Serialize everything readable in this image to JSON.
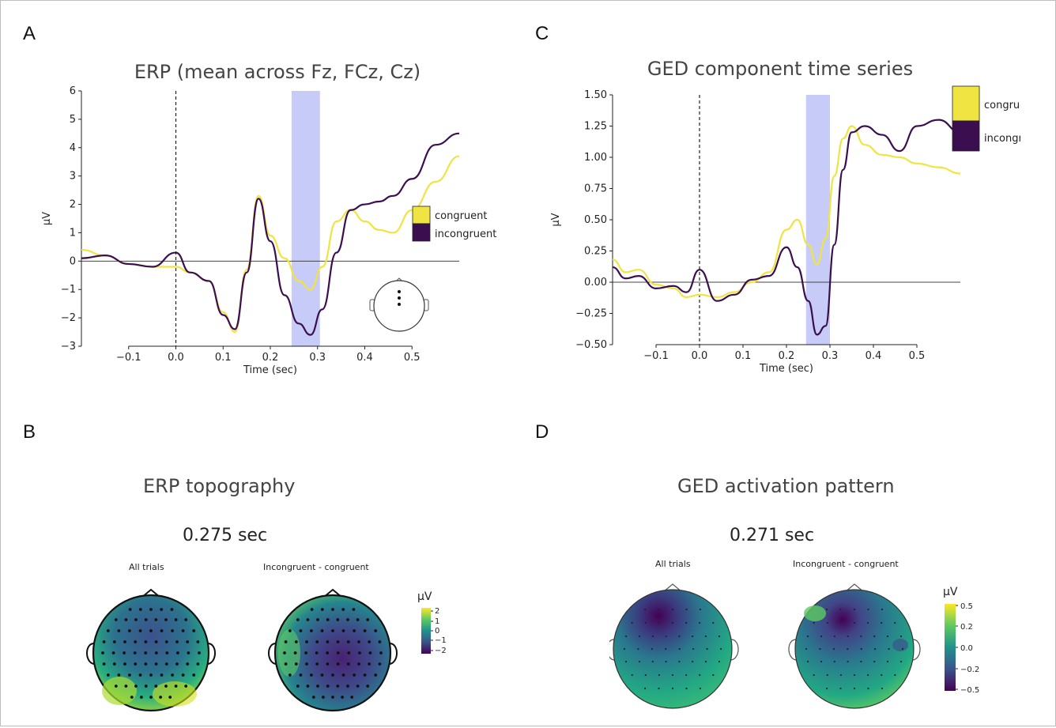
{
  "panels": {
    "a": {
      "letter": "A",
      "title": "ERP (mean across Fz, FCz, Cz)",
      "ylabel": "μV",
      "xlabel": "Time (sec)"
    },
    "b": {
      "letter": "B",
      "title": "ERP topography",
      "time": "0.275 sec",
      "map_left_label": "All trials",
      "map_right_label": "Incongruent - congruent",
      "colorbar_unit": "μV",
      "colorbar_ticks": [
        "2",
        "1",
        "0",
        "−1",
        "−2"
      ]
    },
    "c": {
      "letter": "C",
      "title": "GED component time series",
      "ylabel": "μV",
      "xlabel": "Time (sec)"
    },
    "d": {
      "letter": "D",
      "title": "GED activation pattern",
      "time": "0.271 sec",
      "map_left_label": "All trials",
      "map_right_label": "Incongruent - congruent",
      "colorbar_unit": "μV",
      "colorbar_ticks": [
        "0.5",
        "0.2",
        "0.0",
        "−0.2",
        "−0.5"
      ]
    }
  },
  "colors": {
    "congruent": "#f0e442",
    "incongruent": "#3b0f4f",
    "highlight": "#c7cbf7",
    "viridis": [
      "#440154",
      "#3b528b",
      "#21918c",
      "#5ec962",
      "#fde725"
    ]
  },
  "chart_data": [
    {
      "type": "line",
      "title": "ERP (mean across Fz, FCz, Cz)",
      "xlabel": "Time (sec)",
      "ylabel": "μV",
      "xlim": [
        -0.2,
        0.6
      ],
      "ylim": [
        -3,
        6
      ],
      "xticks": [
        "−0.1",
        "0.0",
        "0.1",
        "0.2",
        "0.3",
        "0.4",
        "0.5"
      ],
      "xtick_values": [
        -0.1,
        0.0,
        0.1,
        0.2,
        0.3,
        0.4,
        0.5
      ],
      "yticks": [
        "−3",
        "−2",
        "−1",
        "0",
        "1",
        "2",
        "3",
        "4",
        "5",
        "6"
      ],
      "ytick_values": [
        -3,
        -2,
        -1,
        0,
        1,
        2,
        3,
        4,
        5,
        6
      ],
      "highlight_window": [
        0.245,
        0.305
      ],
      "stimulus_line_x": 0.0,
      "legend": [
        "congruent",
        "incongruent"
      ],
      "series": [
        {
          "name": "congruent",
          "x": [
            -0.2,
            -0.15,
            -0.1,
            -0.05,
            0.0,
            0.03,
            0.07,
            0.1,
            0.125,
            0.15,
            0.175,
            0.2,
            0.23,
            0.26,
            0.285,
            0.31,
            0.34,
            0.37,
            0.4,
            0.43,
            0.46,
            0.5,
            0.55,
            0.6
          ],
          "y": [
            0.4,
            0.2,
            -0.1,
            -0.2,
            -0.2,
            -0.4,
            -0.7,
            -1.8,
            -2.5,
            -0.3,
            2.3,
            0.9,
            0.1,
            -0.7,
            -1.0,
            -0.2,
            1.4,
            1.8,
            1.4,
            1.1,
            1.0,
            1.8,
            2.8,
            3.7
          ]
        },
        {
          "name": "incongruent",
          "x": [
            -0.2,
            -0.15,
            -0.1,
            -0.05,
            0.0,
            0.03,
            0.07,
            0.1,
            0.125,
            0.15,
            0.175,
            0.2,
            0.23,
            0.26,
            0.285,
            0.31,
            0.34,
            0.37,
            0.4,
            0.43,
            0.46,
            0.5,
            0.55,
            0.6
          ],
          "y": [
            0.1,
            0.2,
            -0.1,
            -0.2,
            0.3,
            -0.4,
            -0.7,
            -1.9,
            -2.4,
            -0.4,
            2.2,
            0.7,
            -1.2,
            -2.2,
            -2.6,
            -1.7,
            0.3,
            1.8,
            2.0,
            2.1,
            2.3,
            2.9,
            4.1,
            4.5
          ]
        }
      ]
    },
    {
      "type": "line",
      "title": "GED component time series",
      "xlabel": "Time (sec)",
      "ylabel": "μV",
      "xlim": [
        -0.2,
        0.6
      ],
      "ylim": [
        -0.5,
        1.5
      ],
      "xticks": [
        "−0.1",
        "0.0",
        "0.1",
        "0.2",
        "0.3",
        "0.4",
        "0.5"
      ],
      "xtick_values": [
        -0.1,
        0.0,
        0.1,
        0.2,
        0.3,
        0.4,
        0.5
      ],
      "yticks": [
        "−0.50",
        "−0.25",
        "0.00",
        "0.25",
        "0.50",
        "0.75",
        "1.00",
        "1.25",
        "1.50"
      ],
      "ytick_values": [
        -0.5,
        -0.25,
        0.0,
        0.25,
        0.5,
        0.75,
        1.0,
        1.25,
        1.5
      ],
      "highlight_window": [
        0.245,
        0.3
      ],
      "stimulus_line_x": 0.0,
      "legend": [
        "congruent",
        "incongruent"
      ],
      "series": [
        {
          "name": "congruent",
          "x": [
            -0.2,
            -0.17,
            -0.14,
            -0.1,
            -0.06,
            -0.03,
            0.0,
            0.04,
            0.08,
            0.12,
            0.16,
            0.2,
            0.225,
            0.25,
            0.27,
            0.29,
            0.31,
            0.33,
            0.35,
            0.38,
            0.42,
            0.46,
            0.5,
            0.55,
            0.6
          ],
          "y": [
            0.18,
            0.08,
            0.1,
            -0.02,
            -0.05,
            -0.12,
            -0.1,
            -0.12,
            -0.08,
            0.0,
            0.08,
            0.42,
            0.5,
            0.3,
            0.14,
            0.35,
            0.85,
            1.15,
            1.25,
            1.1,
            1.02,
            1.0,
            0.95,
            0.92,
            0.87
          ]
        },
        {
          "name": "incongruent",
          "x": [
            -0.2,
            -0.17,
            -0.14,
            -0.1,
            -0.06,
            -0.03,
            0.0,
            0.04,
            0.08,
            0.12,
            0.16,
            0.2,
            0.225,
            0.25,
            0.27,
            0.29,
            0.31,
            0.33,
            0.35,
            0.38,
            0.42,
            0.46,
            0.5,
            0.55,
            0.6
          ],
          "y": [
            0.12,
            0.03,
            0.05,
            -0.05,
            -0.03,
            -0.08,
            0.1,
            -0.15,
            -0.1,
            0.02,
            0.05,
            0.28,
            0.12,
            -0.15,
            -0.42,
            -0.35,
            0.3,
            0.9,
            1.2,
            1.25,
            1.18,
            1.05,
            1.25,
            1.3,
            1.2
          ]
        }
      ]
    }
  ]
}
